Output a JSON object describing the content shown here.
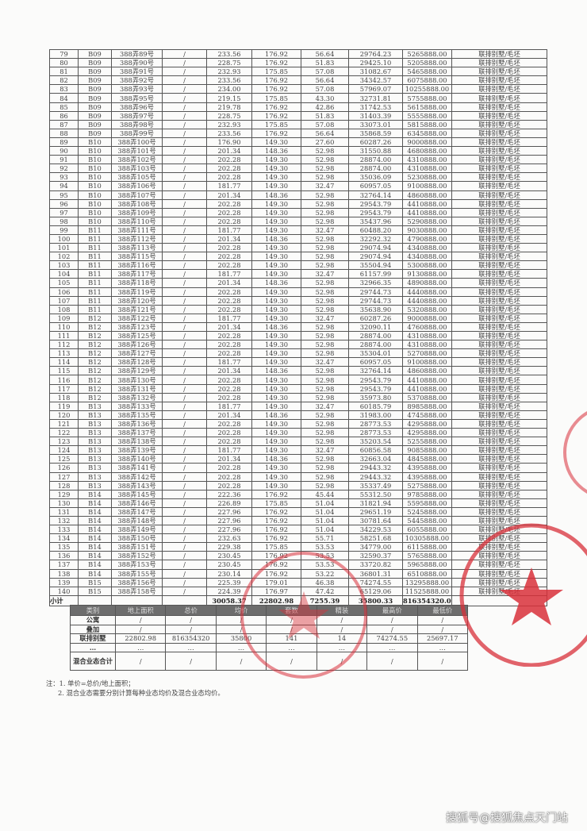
{
  "main_table": {
    "unit_type": "联排别墅/毛坯",
    "rows": [
      [
        "79",
        "B09",
        "388弄89号",
        "/",
        "233.56",
        "176.92",
        "56.64",
        "29764.23",
        "5265888.00"
      ],
      [
        "80",
        "B09",
        "388弄90号",
        "/",
        "228.75",
        "176.92",
        "51.83",
        "29425.10",
        "5205888.00"
      ],
      [
        "81",
        "B09",
        "388弄91号",
        "/",
        "232.93",
        "175.85",
        "57.08",
        "31082.67",
        "5465888.00"
      ],
      [
        "82",
        "B09",
        "388弄92号",
        "/",
        "233.56",
        "176.92",
        "56.64",
        "34342.57",
        "6075888.00"
      ],
      [
        "83",
        "B09",
        "388弄93号",
        "/",
        "234.00",
        "176.92",
        "57.08",
        "57969.07",
        "10255888.00"
      ],
      [
        "84",
        "B09",
        "388弄95号",
        "/",
        "219.15",
        "175.85",
        "43.30",
        "32731.81",
        "5755888.00"
      ],
      [
        "85",
        "B09",
        "388弄96号",
        "/",
        "219.78",
        "176.92",
        "42.86",
        "31742.53",
        "5615888.00"
      ],
      [
        "86",
        "B09",
        "388弄97号",
        "/",
        "228.75",
        "176.92",
        "51.83",
        "31403.39",
        "5555888.00"
      ],
      [
        "87",
        "B09",
        "388弄98号",
        "/",
        "232.93",
        "175.85",
        "57.08",
        "33073.01",
        "5815888.00"
      ],
      [
        "88",
        "B09",
        "388弄99号",
        "/",
        "233.56",
        "176.92",
        "56.64",
        "35868.59",
        "6345888.00"
      ],
      [
        "89",
        "B10",
        "388弄100号",
        "/",
        "176.90",
        "149.30",
        "27.60",
        "60287.26",
        "9000888.00"
      ],
      [
        "90",
        "B10",
        "388弄101号",
        "/",
        "201.34",
        "148.36",
        "52.98",
        "31550.88",
        "4680888.00"
      ],
      [
        "91",
        "B10",
        "388弄102号",
        "/",
        "202.28",
        "149.30",
        "52.98",
        "28874.00",
        "4310888.00"
      ],
      [
        "92",
        "B10",
        "388弄103号",
        "/",
        "202.28",
        "149.30",
        "52.98",
        "28874.00",
        "4310888.00"
      ],
      [
        "93",
        "B10",
        "388弄105号",
        "/",
        "202.28",
        "149.30",
        "52.98",
        "35036.09",
        "5230888.00"
      ],
      [
        "94",
        "B10",
        "388弄106号",
        "/",
        "181.77",
        "149.30",
        "32.47",
        "60957.05",
        "9100888.00"
      ],
      [
        "95",
        "B10",
        "388弄107号",
        "/",
        "201.34",
        "148.36",
        "52.98",
        "32764.14",
        "4860888.00"
      ],
      [
        "96",
        "B10",
        "388弄108号",
        "/",
        "202.28",
        "149.30",
        "52.98",
        "29543.79",
        "4410888.00"
      ],
      [
        "97",
        "B10",
        "388弄109号",
        "/",
        "202.28",
        "149.30",
        "52.98",
        "29543.79",
        "4410888.00"
      ],
      [
        "98",
        "B10",
        "388弄110号",
        "/",
        "202.28",
        "149.30",
        "52.98",
        "35437.96",
        "5290888.00"
      ],
      [
        "99",
        "B11",
        "388弄111号",
        "/",
        "181.77",
        "149.30",
        "32.47",
        "60488.20",
        "9030888.00"
      ],
      [
        "100",
        "B11",
        "388弄112号",
        "/",
        "201.34",
        "148.36",
        "52.98",
        "32292.32",
        "4790888.00"
      ],
      [
        "101",
        "B11",
        "388弄113号",
        "/",
        "202.28",
        "149.30",
        "52.98",
        "29074.94",
        "4340888.00"
      ],
      [
        "102",
        "B11",
        "388弄115号",
        "/",
        "202.28",
        "149.30",
        "52.98",
        "29074.94",
        "4340888.00"
      ],
      [
        "103",
        "B11",
        "388弄116号",
        "/",
        "202.28",
        "149.30",
        "52.98",
        "35504.94",
        "5300888.00"
      ],
      [
        "104",
        "B11",
        "388弄117号",
        "/",
        "181.77",
        "149.30",
        "32.47",
        "61157.99",
        "9130888.00"
      ],
      [
        "105",
        "B11",
        "388弄118号",
        "/",
        "201.34",
        "148.36",
        "52.98",
        "32966.35",
        "4890888.00"
      ],
      [
        "106",
        "B11",
        "388弄119号",
        "/",
        "202.28",
        "149.30",
        "52.98",
        "29744.73",
        "4440888.00"
      ],
      [
        "107",
        "B11",
        "388弄120号",
        "/",
        "202.28",
        "149.30",
        "52.98",
        "29744.73",
        "4440888.00"
      ],
      [
        "108",
        "B11",
        "388弄121号",
        "/",
        "202.28",
        "149.30",
        "52.98",
        "35638.90",
        "5320888.00"
      ],
      [
        "109",
        "B12",
        "388弄122号",
        "/",
        "181.77",
        "149.30",
        "32.47",
        "60287.26",
        "9000888.00"
      ],
      [
        "110",
        "B12",
        "388弄123号",
        "/",
        "201.34",
        "148.36",
        "52.98",
        "32090.11",
        "4760888.00"
      ],
      [
        "111",
        "B12",
        "388弄125号",
        "/",
        "202.28",
        "149.30",
        "52.98",
        "28874.00",
        "4310888.00"
      ],
      [
        "112",
        "B12",
        "388弄126号",
        "/",
        "202.28",
        "149.30",
        "52.98",
        "28874.00",
        "4310888.00"
      ],
      [
        "113",
        "B12",
        "388弄127号",
        "/",
        "202.28",
        "149.30",
        "52.98",
        "35304.01",
        "5270888.00"
      ],
      [
        "114",
        "B12",
        "388弄128号",
        "/",
        "181.77",
        "149.30",
        "32.47",
        "60957.05",
        "9100888.00"
      ],
      [
        "115",
        "B12",
        "388弄129号",
        "/",
        "201.34",
        "148.36",
        "52.98",
        "32764.14",
        "4860888.00"
      ],
      [
        "116",
        "B12",
        "388弄130号",
        "/",
        "202.28",
        "149.30",
        "52.98",
        "29543.79",
        "4410888.00"
      ],
      [
        "117",
        "B12",
        "388弄131号",
        "/",
        "202.28",
        "149.30",
        "52.98",
        "29543.79",
        "4410888.00"
      ],
      [
        "118",
        "B12",
        "388弄132号",
        "/",
        "202.28",
        "149.30",
        "52.98",
        "35973.80",
        "5370888.00"
      ],
      [
        "119",
        "B13",
        "388弄133号",
        "/",
        "181.77",
        "149.30",
        "32.47",
        "60185.79",
        "8985888.00"
      ],
      [
        "120",
        "B13",
        "388弄135号",
        "/",
        "201.34",
        "148.36",
        "52.98",
        "31983.00",
        "4745888.00"
      ],
      [
        "121",
        "B13",
        "388弄136号",
        "/",
        "202.28",
        "149.30",
        "52.98",
        "28773.53",
        "4295888.00"
      ],
      [
        "122",
        "B13",
        "388弄137号",
        "/",
        "202.28",
        "149.30",
        "52.98",
        "28773.53",
        "4295888.00"
      ],
      [
        "123",
        "B13",
        "388弄138号",
        "/",
        "202.28",
        "149.30",
        "52.98",
        "35203.54",
        "5255888.00"
      ],
      [
        "124",
        "B13",
        "388弄139号",
        "/",
        "181.77",
        "149.30",
        "32.47",
        "60856.58",
        "9085888.00"
      ],
      [
        "125",
        "B13",
        "388弄140号",
        "/",
        "201.34",
        "148.36",
        "52.98",
        "32663.04",
        "4845888.00"
      ],
      [
        "126",
        "B13",
        "388弄141号",
        "/",
        "202.28",
        "149.30",
        "52.98",
        "29443.32",
        "4395888.00"
      ],
      [
        "127",
        "B13",
        "388弄142号",
        "/",
        "202.28",
        "149.30",
        "52.98",
        "29443.32",
        "4395888.00"
      ],
      [
        "128",
        "B13",
        "388弄143号",
        "/",
        "202.28",
        "149.30",
        "52.98",
        "35337.49",
        "5275888.00"
      ],
      [
        "129",
        "B14",
        "388弄145号",
        "/",
        "222.36",
        "176.92",
        "45.44",
        "55312.50",
        "9785888.00"
      ],
      [
        "130",
        "B14",
        "388弄146号",
        "/",
        "226.89",
        "175.85",
        "51.04",
        "31821.94",
        "5595888.00"
      ],
      [
        "131",
        "B14",
        "388弄147号",
        "/",
        "227.96",
        "176.92",
        "51.04",
        "29651.19",
        "5245888.00"
      ],
      [
        "132",
        "B14",
        "388弄148号",
        "/",
        "227.96",
        "176.92",
        "51.04",
        "30781.64",
        "5445888.00"
      ],
      [
        "133",
        "B14",
        "388弄149号",
        "/",
        "227.96",
        "176.92",
        "51.04",
        "34229.53",
        "6055888.00"
      ],
      [
        "134",
        "B14",
        "388弄150号",
        "/",
        "232.63",
        "176.92",
        "55.71",
        "58251.68",
        "10305888.00"
      ],
      [
        "135",
        "B14",
        "388弄151号",
        "/",
        "229.38",
        "175.85",
        "53.53",
        "34779.00",
        "6115888.00"
      ],
      [
        "136",
        "B14",
        "388弄152号",
        "/",
        "230.45",
        "176.92",
        "53.53",
        "32590.37",
        "5765888.00"
      ],
      [
        "137",
        "B14",
        "388弄153号",
        "/",
        "230.45",
        "176.92",
        "53.53",
        "33720.82",
        "5965888.00"
      ],
      [
        "138",
        "B14",
        "388弄155号",
        "/",
        "230.14",
        "176.92",
        "53.22",
        "36801.31",
        "6510888.00"
      ],
      [
        "139",
        "B15",
        "388弄156号",
        "/",
        "225.39",
        "179.01",
        "46.38",
        "74274.55",
        "13295888.00"
      ],
      [
        "140",
        "B15",
        "388弄158号",
        "/",
        "224.39",
        "176.97",
        "47.42",
        "65129.06",
        "11525888.00"
      ]
    ],
    "subtotal": {
      "label": "小计",
      "area_total": "30058.37",
      "area_above": "22802.98",
      "area_below": "7255.39",
      "unit_price": "35800.33",
      "total_price": "816354320.00"
    }
  },
  "summary_table": {
    "headers": [
      "类别",
      "地上面积",
      "总价",
      "均价",
      "套数",
      "精装",
      "最高价",
      "最低价"
    ],
    "rows": [
      [
        "公寓",
        "/",
        "/",
        "/",
        "/",
        "/",
        "/",
        "/"
      ],
      [
        "叠加",
        "/",
        "/",
        "/",
        "/",
        "/",
        "/",
        "/"
      ],
      [
        "联排别墅",
        "22802.98",
        "816354320",
        "35800",
        "141",
        "14",
        "74274.55",
        "25697.17"
      ],
      [
        "…",
        "…",
        "…",
        "…",
        "…",
        "…",
        "…",
        "…"
      ],
      [
        "混合业态合计",
        "/",
        "/",
        "/",
        "/",
        "/",
        "/",
        "/"
      ]
    ]
  },
  "notes": [
    "注：1. 单价=总价/地上面积；",
    "2. 混合业态需要分别计算每种业态均价及混合业态均价。"
  ],
  "watermark": "搜狐号@搜狐焦点天门站",
  "stamp_color": "#d8303a"
}
